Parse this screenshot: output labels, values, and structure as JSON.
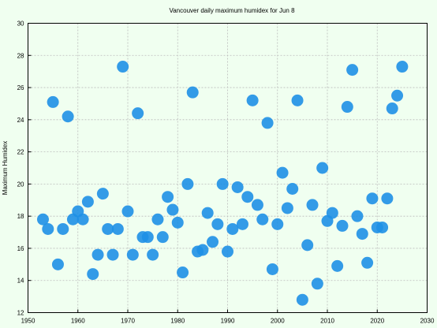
{
  "chart_data": {
    "type": "scatter",
    "title": "Vancouver daily maximum humidex for Jun 8",
    "xlabel": "",
    "ylabel": "Maximum Humidex",
    "xlim": [
      1950,
      2030
    ],
    "ylim": [
      12,
      30
    ],
    "xticks": [
      1950,
      1960,
      1970,
      1980,
      1990,
      2000,
      2010,
      2020,
      2030
    ],
    "yticks": [
      12,
      14,
      16,
      18,
      20,
      22,
      24,
      26,
      28,
      30
    ],
    "grid": true,
    "legend": "none",
    "marker_color": "#1e90e6",
    "series": [
      {
        "points": [
          [
            1953,
            17.8
          ],
          [
            1954,
            17.2
          ],
          [
            1955,
            25.1
          ],
          [
            1956,
            15.0
          ],
          [
            1957,
            17.2
          ],
          [
            1958,
            24.2
          ],
          [
            1959,
            17.8
          ],
          [
            1960,
            18.3
          ],
          [
            1961,
            17.8
          ],
          [
            1962,
            18.9
          ],
          [
            1963,
            14.4
          ],
          [
            1964,
            15.6
          ],
          [
            1965,
            19.4
          ],
          [
            1966,
            17.2
          ],
          [
            1967,
            15.6
          ],
          [
            1968,
            17.2
          ],
          [
            1969,
            27.3
          ],
          [
            1970,
            18.3
          ],
          [
            1971,
            15.6
          ],
          [
            1972,
            24.4
          ],
          [
            1973,
            16.7
          ],
          [
            1974,
            16.7
          ],
          [
            1975,
            15.6
          ],
          [
            1976,
            17.8
          ],
          [
            1977,
            16.7
          ],
          [
            1978,
            19.2
          ],
          [
            1979,
            18.4
          ],
          [
            1980,
            17.6
          ],
          [
            1981,
            14.5
          ],
          [
            1982,
            20.0
          ],
          [
            1983,
            25.7
          ],
          [
            1984,
            15.8
          ],
          [
            1985,
            15.9
          ],
          [
            1986,
            18.2
          ],
          [
            1987,
            16.4
          ],
          [
            1988,
            17.5
          ],
          [
            1989,
            20.0
          ],
          [
            1990,
            15.8
          ],
          [
            1991,
            17.2
          ],
          [
            1992,
            19.8
          ],
          [
            1993,
            17.5
          ],
          [
            1994,
            19.2
          ],
          [
            1995,
            25.2
          ],
          [
            1996,
            18.7
          ],
          [
            1997,
            17.8
          ],
          [
            1998,
            23.8
          ],
          [
            1999,
            14.7
          ],
          [
            2000,
            17.5
          ],
          [
            2001,
            20.7
          ],
          [
            2002,
            18.5
          ],
          [
            2003,
            19.7
          ],
          [
            2004,
            25.2
          ],
          [
            2005,
            12.8
          ],
          [
            2006,
            16.2
          ],
          [
            2007,
            18.7
          ],
          [
            2008,
            13.8
          ],
          [
            2009,
            21.0
          ],
          [
            2010,
            17.7
          ],
          [
            2011,
            18.2
          ],
          [
            2012,
            14.9
          ],
          [
            2013,
            17.4
          ],
          [
            2014,
            24.8
          ],
          [
            2015,
            27.1
          ],
          [
            2016,
            18.0
          ],
          [
            2017,
            16.9
          ],
          [
            2018,
            15.1
          ],
          [
            2019,
            19.1
          ],
          [
            2020,
            17.3
          ],
          [
            2021,
            17.3
          ],
          [
            2022,
            19.1
          ],
          [
            2023,
            24.7
          ],
          [
            2024,
            25.5
          ],
          [
            2025,
            27.3
          ]
        ]
      }
    ]
  }
}
